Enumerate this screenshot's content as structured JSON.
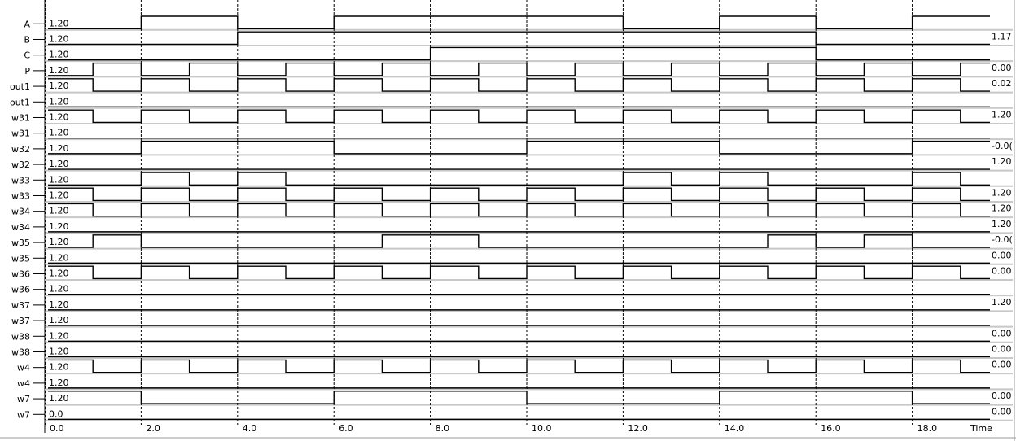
{
  "chart_data": {
    "type": "line",
    "x_axis_label": "Time",
    "x_ticks": [
      "0.0",
      "2.0",
      "4.0",
      "6.0",
      "8.0",
      "10.0",
      "12.0",
      "14.0",
      "16.0",
      "18.0"
    ],
    "x_range": [
      0,
      20
    ],
    "period_note_free": "",
    "rows": [
      {
        "name": "A",
        "value_label": "1.20",
        "right_label": "",
        "wave": [
          [
            0,
            0
          ],
          [
            2,
            1
          ],
          [
            4,
            0
          ],
          [
            6,
            1
          ],
          [
            8,
            1
          ],
          [
            10,
            1
          ],
          [
            12,
            0
          ],
          [
            14,
            1
          ],
          [
            16,
            0
          ],
          [
            18,
            1
          ]
        ]
      },
      {
        "name": "B",
        "value_label": "1.20",
        "right_label": "1.17",
        "wave": [
          [
            0,
            0
          ],
          [
            4,
            1
          ],
          [
            6,
            1
          ],
          [
            8,
            1
          ],
          [
            10,
            1
          ],
          [
            12,
            1
          ],
          [
            14,
            1
          ],
          [
            16,
            0
          ],
          [
            18,
            0
          ]
        ]
      },
      {
        "name": "C",
        "value_label": "1.20",
        "right_label": "",
        "wave": [
          [
            0,
            0
          ],
          [
            8,
            1
          ],
          [
            16,
            0
          ]
        ]
      },
      {
        "name": "P",
        "value_label": "1.20",
        "right_label": "0.00",
        "wave": "clock_high_first"
      },
      {
        "name": "out1",
        "value_label": "1.20",
        "right_label": "0.02",
        "wave": "clock_inverted"
      },
      {
        "name": "out1",
        "value_label": "1.20",
        "right_label": "",
        "wave": "flat_low"
      },
      {
        "name": "w31",
        "value_label": "1.20",
        "right_label": "1.20",
        "wave": "clock_inverted"
      },
      {
        "name": "w31",
        "value_label": "1.20",
        "right_label": "",
        "wave": "flat_low"
      },
      {
        "name": "w32",
        "value_label": "1.20",
        "right_label": "-0.0(",
        "wave": [
          [
            0,
            0
          ],
          [
            2,
            1
          ],
          [
            6,
            0
          ],
          [
            10,
            1
          ],
          [
            14,
            0
          ],
          [
            18,
            1
          ]
        ]
      },
      {
        "name": "w32",
        "value_label": "1.20",
        "right_label": "1.20",
        "wave": "flat_low"
      },
      {
        "name": "w33",
        "value_label": "1.20",
        "right_label": "",
        "wave": [
          [
            0,
            0
          ],
          [
            2,
            1
          ],
          [
            3,
            0
          ],
          [
            4,
            1
          ],
          [
            5,
            0
          ],
          [
            6,
            0
          ],
          [
            11,
            0
          ],
          [
            12,
            1
          ],
          [
            13,
            0
          ],
          [
            14,
            1
          ],
          [
            15,
            0
          ],
          [
            18,
            1
          ],
          [
            19,
            0
          ]
        ]
      },
      {
        "name": "w33",
        "value_label": "1.20",
        "right_label": "1.20",
        "wave": "clock_inverted"
      },
      {
        "name": "w34",
        "value_label": "1.20",
        "right_label": "1.20",
        "wave": "clock_inverted"
      },
      {
        "name": "w34",
        "value_label": "1.20",
        "right_label": "1.20",
        "wave": "flat_low"
      },
      {
        "name": "w35",
        "value_label": "1.20",
        "right_label": "-0.0(",
        "wave": [
          [
            0,
            0
          ],
          [
            1,
            1
          ],
          [
            2,
            0
          ],
          [
            7,
            1
          ],
          [
            9,
            0
          ],
          [
            15,
            1
          ],
          [
            16,
            0
          ],
          [
            17,
            1
          ],
          [
            18,
            0
          ]
        ]
      },
      {
        "name": "w35",
        "value_label": "1.20",
        "right_label": "0.00",
        "wave": "flat_low"
      },
      {
        "name": "w36",
        "value_label": "1.20",
        "right_label": "0.00",
        "wave": "clock_inverted"
      },
      {
        "name": "w36",
        "value_label": "1.20",
        "right_label": "",
        "wave": "flat_low"
      },
      {
        "name": "w37",
        "value_label": "1.20",
        "right_label": "1.20",
        "wave": "flat_low"
      },
      {
        "name": "w37",
        "value_label": "1.20",
        "right_label": "",
        "wave": "flat_low"
      },
      {
        "name": "w38",
        "value_label": "1.20",
        "right_label": "0.00",
        "wave": "flat_low"
      },
      {
        "name": "w38",
        "value_label": "1.20",
        "right_label": "0.00",
        "wave": "flat_low"
      },
      {
        "name": "w4",
        "value_label": "1.20",
        "right_label": "0.00",
        "wave": "clock_inverted"
      },
      {
        "name": "w4",
        "value_label": "1.20",
        "right_label": "",
        "wave": "flat_low"
      },
      {
        "name": "w7",
        "value_label": "1.20",
        "right_label": "0.00",
        "wave": [
          [
            0,
            1
          ],
          [
            2,
            0
          ],
          [
            6,
            1
          ],
          [
            10,
            0
          ],
          [
            14,
            1
          ],
          [
            18,
            0
          ]
        ]
      },
      {
        "name": "w7",
        "value_label": "0.0",
        "right_label": "0.00",
        "wave": "flat_low"
      }
    ]
  }
}
